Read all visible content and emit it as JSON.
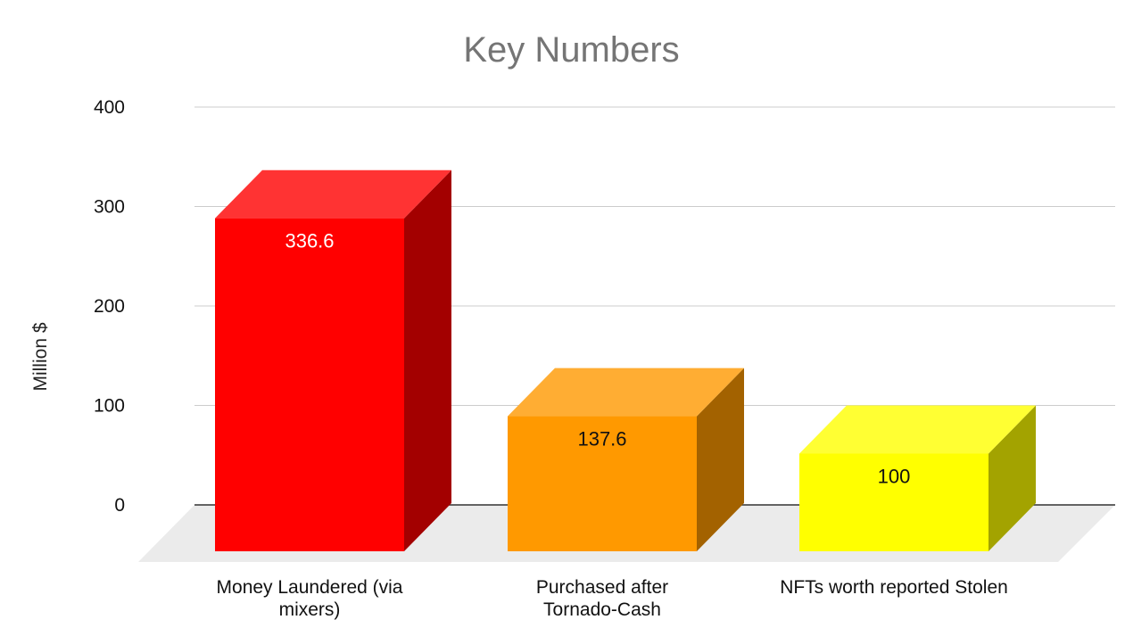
{
  "chart_data": {
    "type": "bar",
    "title": "Key Numbers",
    "ylabel": "Million $",
    "xlabel": "",
    "ylim": [
      0,
      400
    ],
    "yticks": [
      "0",
      "100",
      "200",
      "300",
      "400"
    ],
    "categories": [
      [
        "Money Laundered (via",
        "mixers)"
      ],
      [
        "Purchased after",
        "Tornado-Cash"
      ],
      [
        "NFTs worth reported Stolen"
      ]
    ],
    "values": [
      336.6,
      137.6,
      100
    ],
    "data_labels": [
      "336.6",
      "137.6",
      "100"
    ],
    "colors": {
      "bars": [
        {
          "front": "#ff0000",
          "top": "#ff3333",
          "side": "#a30000",
          "label": "#ffffff"
        },
        {
          "front": "#ff9900",
          "top": "#ffad33",
          "side": "#a36200",
          "label": "#111111"
        },
        {
          "front": "#ffff00",
          "top": "#ffff33",
          "side": "#a3a300",
          "label": "#111111"
        }
      ],
      "grid": "#cccccc",
      "floor": "#ebebeb"
    },
    "grid": true,
    "style": "3d"
  }
}
